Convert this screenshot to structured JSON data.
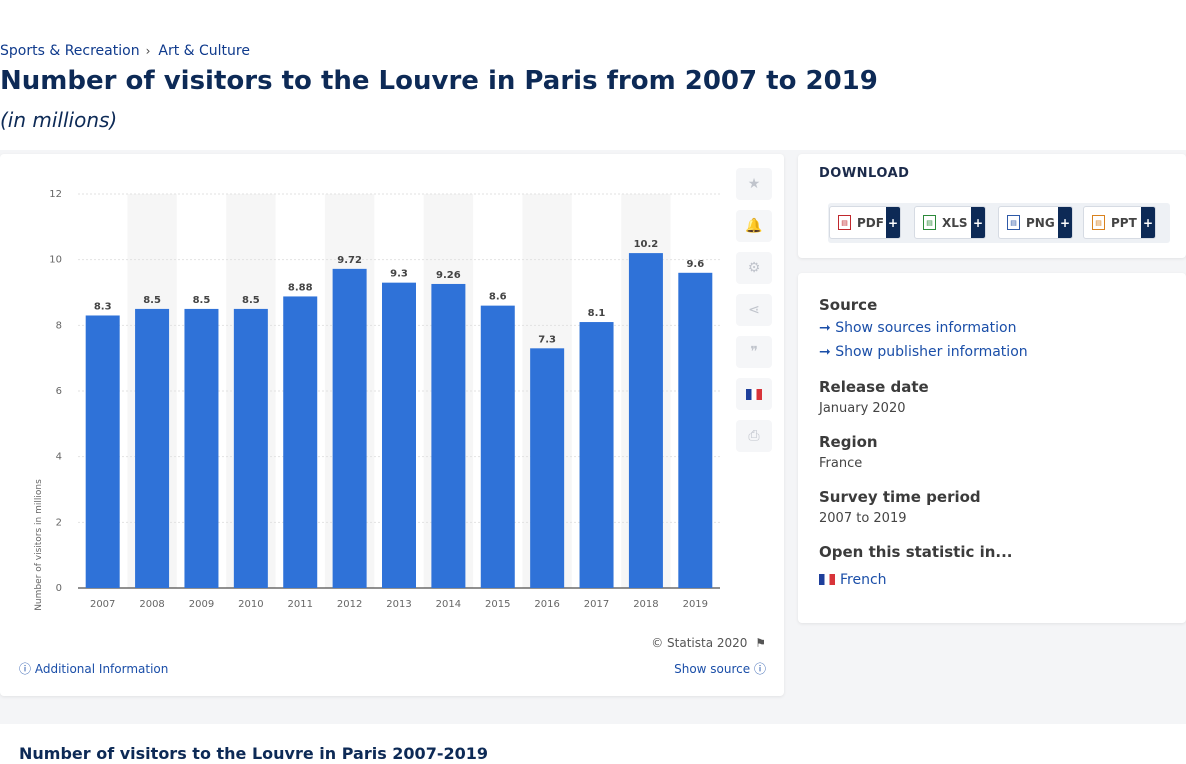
{
  "breadcrumb": [
    "Sports & Recreation",
    "Art & Culture"
  ],
  "page": {
    "title": "Number of visitors to the Louvre in Paris from 2007 to 2019",
    "subtitle": "(in millions)"
  },
  "chart_data": {
    "type": "bar",
    "categories": [
      "2007",
      "2008",
      "2009",
      "2010",
      "2011",
      "2012",
      "2013",
      "2014",
      "2015",
      "2016",
      "2017",
      "2018",
      "2019"
    ],
    "values": [
      8.3,
      8.5,
      8.5,
      8.5,
      8.88,
      9.72,
      9.3,
      9.26,
      8.6,
      7.3,
      8.1,
      10.2,
      9.6
    ],
    "value_labels": [
      "8.3",
      "8.5",
      "8.5",
      "8.5",
      "8.88",
      "9.72",
      "9.3",
      "9.26",
      "8.6",
      "7.3",
      "8.1",
      "10.2",
      "9.6"
    ],
    "ylabel": "Number of visitors in millions",
    "ylim": [
      0,
      12
    ],
    "yticks": [
      0,
      2,
      4,
      6,
      8,
      10,
      12
    ],
    "bar_color": "#2f72d8",
    "grid": true
  },
  "tools": {
    "star": "star-icon",
    "bell": "bell-icon",
    "settings": "gear-icon",
    "share": "share-icon",
    "cite": "quote-icon",
    "language": "flag-fr-icon",
    "print": "print-icon"
  },
  "footer": {
    "copyright": "© Statista 2020",
    "additional_info": "Additional Information",
    "show_source": "Show source"
  },
  "download": {
    "label": "DOWNLOAD",
    "buttons": [
      {
        "label": "PDF",
        "plus": "+"
      },
      {
        "label": "XLS",
        "plus": "+"
      },
      {
        "label": "PNG",
        "plus": "+"
      },
      {
        "label": "PPT",
        "plus": "+"
      }
    ]
  },
  "info": {
    "source_heading": "Source",
    "show_sources": "Show sources information",
    "show_publisher": "Show publisher information",
    "release_heading": "Release date",
    "release_value": "January 2020",
    "region_heading": "Region",
    "region_value": "France",
    "survey_heading": "Survey time period",
    "survey_value": "2007 to 2019",
    "open_heading": "Open this statistic in...",
    "open_french": "French"
  },
  "bottom": {
    "title": "Number of visitors to the Louvre in Paris 2007-2019"
  }
}
